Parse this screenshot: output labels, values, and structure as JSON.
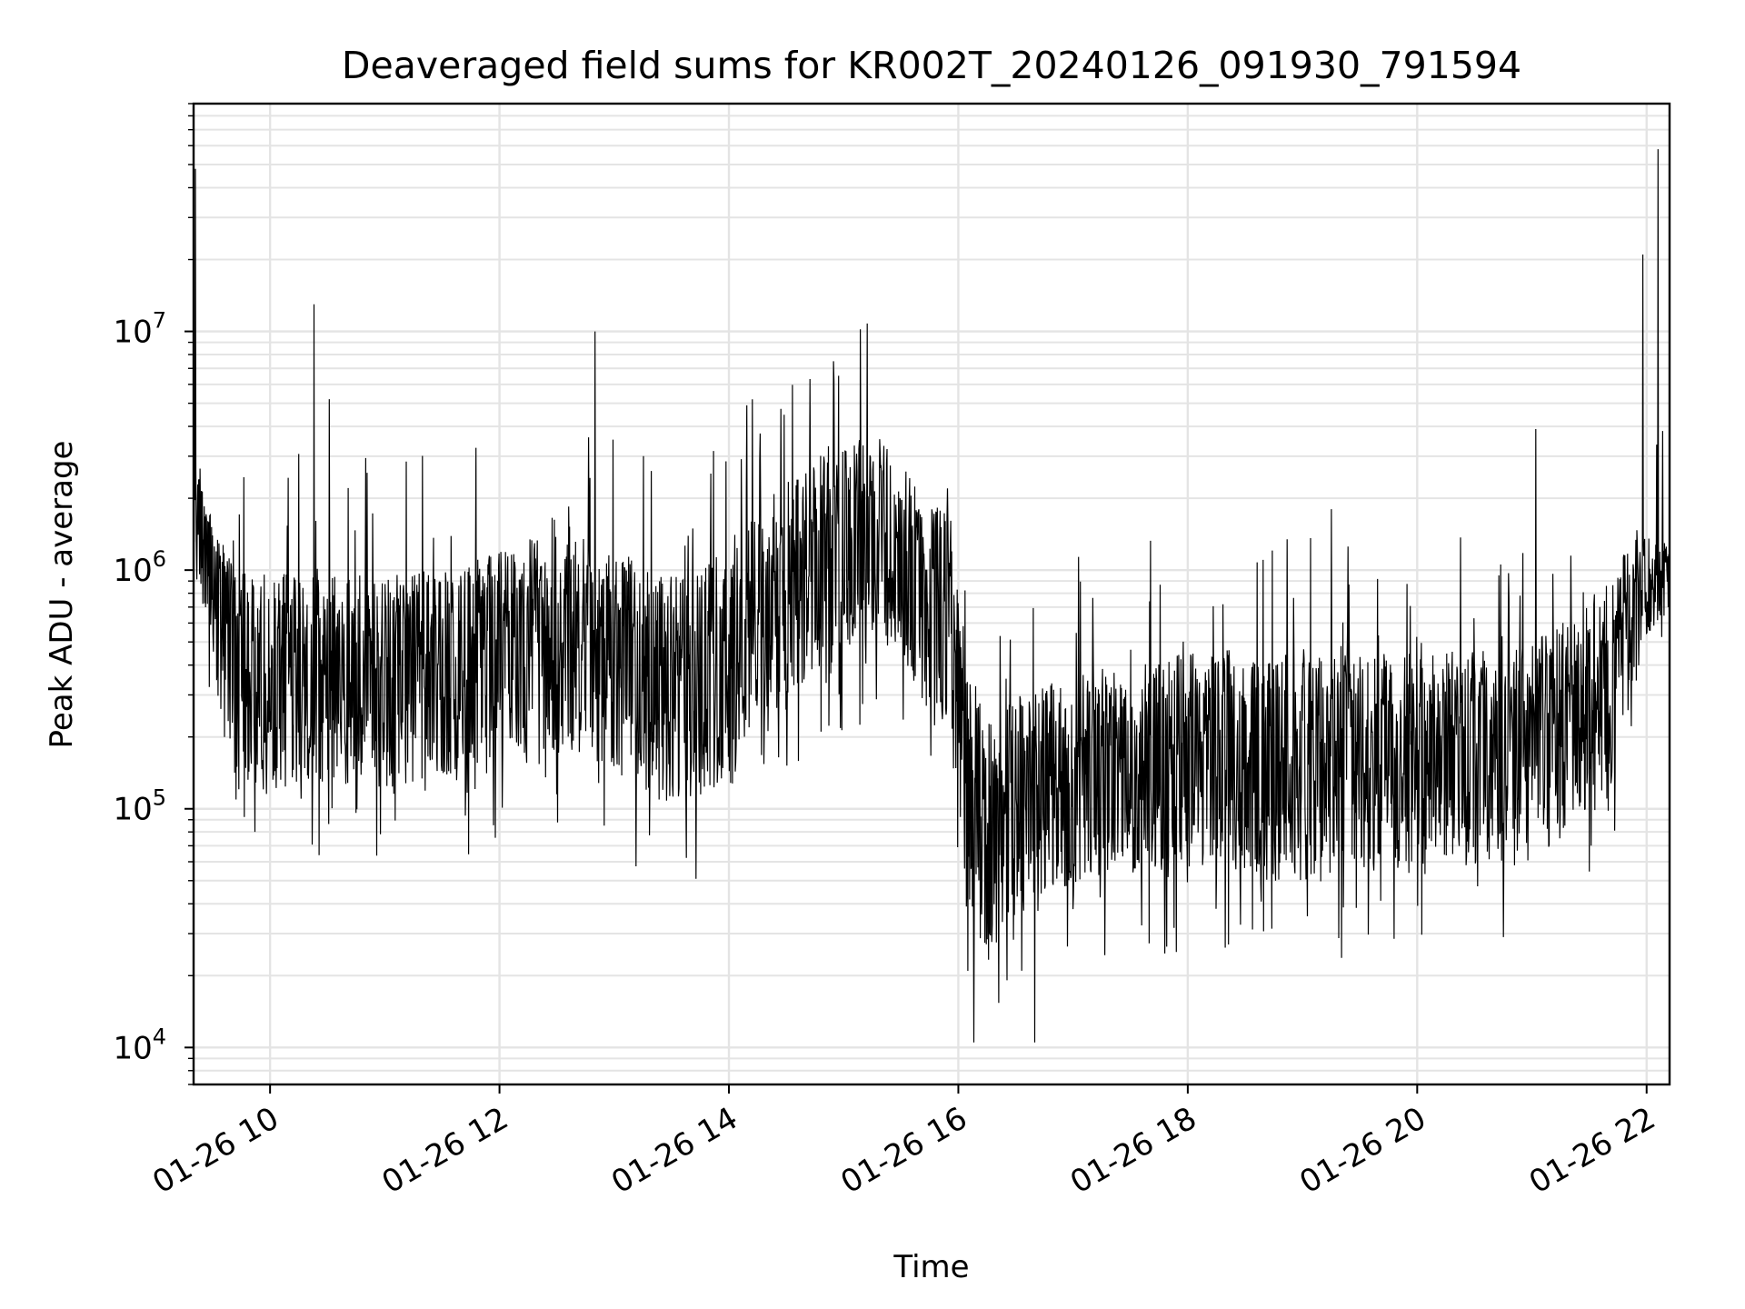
{
  "chart_data": {
    "type": "line",
    "title": "Deaveraged field sums for KR002T_20240126_091930_791594",
    "xlabel": "Time",
    "ylabel": "Peak ADU - average",
    "x_scale": "time",
    "y_scale": "log",
    "xlim": [
      "2024-01-26 09:20",
      "2024-01-26 22:12"
    ],
    "ylim": [
      7000,
      90000000
    ],
    "grid": true,
    "legend": "none",
    "x_ticks": [
      {
        "value": "2024-01-26 10:00",
        "label": "01-26 10"
      },
      {
        "value": "2024-01-26 12:00",
        "label": "01-26 12"
      },
      {
        "value": "2024-01-26 14:00",
        "label": "01-26 14"
      },
      {
        "value": "2024-01-26 16:00",
        "label": "01-26 16"
      },
      {
        "value": "2024-01-26 18:00",
        "label": "01-26 18"
      },
      {
        "value": "2024-01-26 20:00",
        "label": "01-26 20"
      },
      {
        "value": "2024-01-26 22:00",
        "label": "01-26 22"
      }
    ],
    "y_ticks": [
      {
        "value": 10000,
        "base": "10",
        "exp": "4"
      },
      {
        "value": 100000,
        "base": "10",
        "exp": "5"
      },
      {
        "value": 1000000,
        "base": "10",
        "exp": "6"
      },
      {
        "value": 10000000,
        "base": "10",
        "exp": "7"
      }
    ],
    "series": [
      {
        "color": "#000000",
        "x": [
          "2024-01-26 09:20",
          "2024-01-26 09:30",
          "2024-01-26 09:40",
          "2024-01-26 09:50",
          "2024-01-26 10:00",
          "2024-01-26 10:20",
          "2024-01-26 10:40",
          "2024-01-26 11:00",
          "2024-01-26 11:20",
          "2024-01-26 11:40",
          "2024-01-26 12:00",
          "2024-01-26 12:20",
          "2024-01-26 12:40",
          "2024-01-26 13:00",
          "2024-01-26 13:20",
          "2024-01-26 13:40",
          "2024-01-26 14:00",
          "2024-01-26 14:20",
          "2024-01-26 14:40",
          "2024-01-26 15:00",
          "2024-01-26 15:20",
          "2024-01-26 15:40",
          "2024-01-26 15:55",
          "2024-01-26 16:05",
          "2024-01-26 16:15",
          "2024-01-26 16:30",
          "2024-01-26 16:45",
          "2024-01-26 17:00",
          "2024-01-26 17:20",
          "2024-01-26 17:40",
          "2024-01-26 18:00",
          "2024-01-26 18:20",
          "2024-01-26 18:40",
          "2024-01-26 19:00",
          "2024-01-26 19:20",
          "2024-01-26 19:40",
          "2024-01-26 20:00",
          "2024-01-26 20:20",
          "2024-01-26 20:40",
          "2024-01-26 21:00",
          "2024-01-26 21:20",
          "2024-01-26 21:40",
          "2024-01-26 21:55",
          "2024-01-26 22:05",
          "2024-01-26 22:12"
        ],
        "y": [
          2500000,
          1200000,
          700000,
          450000,
          400000,
          420000,
          380000,
          360000,
          380000,
          420000,
          480000,
          520000,
          560000,
          480000,
          380000,
          300000,
          420000,
          700000,
          1050000,
          1450000,
          1500000,
          800000,
          580000,
          160000,
          80000,
          110000,
          120000,
          140000,
          150000,
          160000,
          170000,
          165000,
          160000,
          160000,
          165000,
          170000,
          165000,
          170000,
          175000,
          185000,
          250000,
          350000,
          800000,
          900000,
          950000
        ],
        "y_low": [
          1000000,
          500000,
          130000,
          120000,
          120000,
          130000,
          120000,
          120000,
          130000,
          130000,
          170000,
          170000,
          170000,
          140000,
          110000,
          100000,
          140000,
          230000,
          330000,
          450000,
          500000,
          260000,
          190000,
          40000,
          22000,
          35000,
          40000,
          45000,
          50000,
          55000,
          55000,
          52000,
          50000,
          50000,
          52000,
          55000,
          52000,
          55000,
          55000,
          60000,
          80000,
          110000,
          350000,
          600000,
          650000
        ],
        "y_high": [
          3000000,
          1600000,
          1100000,
          1000000,
          950000,
          1000000,
          950000,
          950000,
          1000000,
          1050000,
          1200000,
          1400000,
          1500000,
          1300000,
          1000000,
          900000,
          1300000,
          2000000,
          2800000,
          3500000,
          3600000,
          2200000,
          1700000,
          450000,
          230000,
          300000,
          330000,
          380000,
          400000,
          420000,
          450000,
          440000,
          430000,
          430000,
          440000,
          460000,
          450000,
          460000,
          480000,
          500000,
          650000,
          900000,
          1500000,
          1300000,
          1300000
        ],
        "spikes": [
          {
            "x": "2024-01-26 09:21",
            "y": 48000000
          },
          {
            "x": "2024-01-26 10:23",
            "y": 13000000
          },
          {
            "x": "2024-01-26 10:31",
            "y": 5200000
          },
          {
            "x": "2024-01-26 12:50",
            "y": 10000000
          },
          {
            "x": "2024-01-26 14:55",
            "y": 6200000
          },
          {
            "x": "2024-01-26 16:08",
            "y": 10500
          },
          {
            "x": "2024-01-26 16:40",
            "y": 10500
          },
          {
            "x": "2024-01-26 19:15",
            "y": 1800000
          },
          {
            "x": "2024-01-26 21:02",
            "y": 3900000
          },
          {
            "x": "2024-01-26 21:58",
            "y": 21000000
          },
          {
            "x": "2024-01-26 22:06",
            "y": 58000000
          }
        ]
      }
    ]
  }
}
